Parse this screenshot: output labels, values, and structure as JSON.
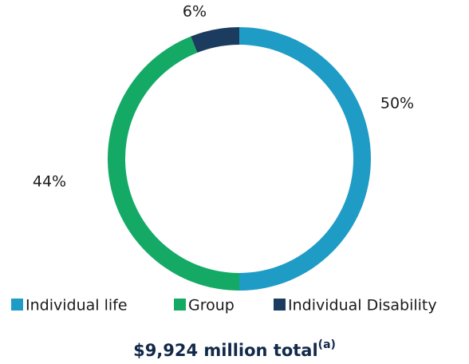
{
  "chart_data": {
    "type": "pie",
    "donut": true,
    "categories": [
      "Individual life",
      "Group",
      "Individual Disability"
    ],
    "values": [
      50,
      44,
      6
    ],
    "value_labels": [
      "50%",
      "44%",
      "6%"
    ],
    "colors": [
      "#1f9cc6",
      "#14aa66",
      "#1b3c5e"
    ],
    "total_label": {
      "text": "$9,924 million total",
      "note": "(a)"
    },
    "legend": "bottom"
  }
}
